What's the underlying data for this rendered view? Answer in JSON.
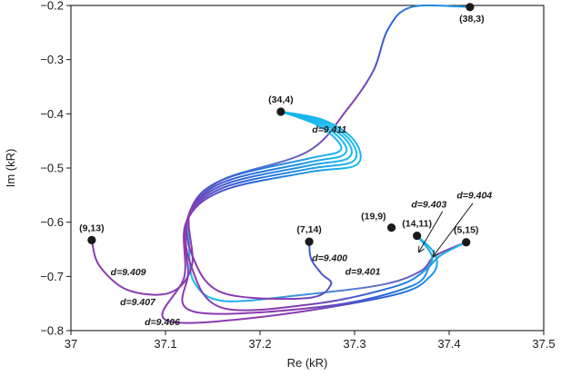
{
  "chart_data": {
    "type": "line",
    "xlabel": "Re (kR)",
    "ylabel": "Im (kR)",
    "xlim": [
      37.0,
      37.5
    ],
    "ylim": [
      -0.8,
      -0.2
    ],
    "xticks": [
      {
        "v": 37.0,
        "label": "37"
      },
      {
        "v": 37.1,
        "label": "37.1"
      },
      {
        "v": 37.2,
        "label": "37.2"
      },
      {
        "v": 37.3,
        "label": "37.3"
      },
      {
        "v": 37.4,
        "label": "37.4"
      },
      {
        "v": 37.5,
        "label": "37.5"
      }
    ],
    "yticks": [
      {
        "v": -0.8,
        "label": "−0.8"
      },
      {
        "v": -0.7,
        "label": "−0.7"
      },
      {
        "v": -0.6,
        "label": "−0.6"
      },
      {
        "v": -0.5,
        "label": "−0.5"
      },
      {
        "v": -0.4,
        "label": "−0.4"
      },
      {
        "v": -0.3,
        "label": "−0.3"
      },
      {
        "v": -0.2,
        "label": "−0.2"
      }
    ],
    "points": [
      {
        "label": "(38,3)",
        "x": 37.422,
        "y": -0.203
      },
      {
        "label": "(34,4)",
        "x": 37.222,
        "y": -0.396
      },
      {
        "label": "(9,13)",
        "x": 37.022,
        "y": -0.633
      },
      {
        "label": "(7,14)",
        "x": 37.252,
        "y": -0.636
      },
      {
        "label": "(19,9)",
        "x": 37.339,
        "y": -0.61
      },
      {
        "label": "(14,11)",
        "x": 37.366,
        "y": -0.625
      },
      {
        "label": "(5,15)",
        "x": 37.418,
        "y": -0.637
      }
    ],
    "series": [
      {
        "name": "d=9.411",
        "points": [
          [
            37.422,
            -0.203
          ],
          [
            37.36,
            -0.203
          ],
          [
            37.335,
            -0.245
          ],
          [
            37.32,
            -0.32
          ],
          [
            37.292,
            -0.392
          ],
          [
            37.25,
            -0.47
          ],
          [
            37.16,
            -0.522
          ],
          [
            37.126,
            -0.58
          ],
          [
            37.125,
            -0.64
          ],
          [
            37.13,
            -0.71
          ],
          [
            37.16,
            -0.745
          ],
          [
            37.24,
            -0.735
          ],
          [
            37.33,
            -0.715
          ],
          [
            37.37,
            -0.69
          ],
          [
            37.385,
            -0.662
          ],
          [
            37.418,
            -0.637
          ]
        ]
      },
      {
        "name": "d=9.411",
        "points": [
          [
            37.222,
            -0.396
          ],
          [
            37.26,
            -0.42
          ],
          [
            37.282,
            -0.45
          ],
          [
            37.283,
            -0.47
          ],
          [
            37.25,
            -0.483
          ],
          [
            37.16,
            -0.522
          ],
          [
            37.126,
            -0.58
          ],
          [
            37.128,
            -0.68
          ],
          [
            37.105,
            -0.73
          ],
          [
            37.06,
            -0.725
          ],
          [
            37.03,
            -0.68
          ],
          [
            37.022,
            -0.633
          ]
        ]
      },
      {
        "name": "d=9.411",
        "points": [
          [
            37.222,
            -0.396
          ],
          [
            37.262,
            -0.418
          ],
          [
            37.287,
            -0.45
          ],
          [
            37.288,
            -0.476
          ],
          [
            37.25,
            -0.49
          ],
          [
            37.16,
            -0.527
          ],
          [
            37.125,
            -0.585
          ],
          [
            37.128,
            -0.66
          ],
          [
            37.16,
            -0.73
          ],
          [
            37.25,
            -0.74
          ],
          [
            37.275,
            -0.715
          ],
          [
            37.265,
            -0.695
          ],
          [
            37.254,
            -0.668
          ],
          [
            37.252,
            -0.636
          ]
        ]
      },
      {
        "name": "d=9.411",
        "points": [
          [
            37.222,
            -0.396
          ],
          [
            37.264,
            -0.416
          ],
          [
            37.292,
            -0.45
          ],
          [
            37.293,
            -0.482
          ],
          [
            37.25,
            -0.496
          ],
          [
            37.16,
            -0.532
          ],
          [
            37.124,
            -0.59
          ],
          [
            37.127,
            -0.68
          ],
          [
            37.16,
            -0.758
          ],
          [
            37.26,
            -0.75
          ],
          [
            37.34,
            -0.72
          ],
          [
            37.37,
            -0.695
          ],
          [
            37.382,
            -0.664
          ],
          [
            37.366,
            -0.625
          ]
        ]
      },
      {
        "name": "d=9.411",
        "points": [
          [
            37.222,
            -0.396
          ],
          [
            37.266,
            -0.414
          ],
          [
            37.296,
            -0.45
          ],
          [
            37.298,
            -0.488
          ],
          [
            37.25,
            -0.502
          ],
          [
            37.16,
            -0.537
          ],
          [
            37.123,
            -0.595
          ],
          [
            37.124,
            -0.69
          ],
          [
            37.13,
            -0.765
          ],
          [
            37.27,
            -0.755
          ],
          [
            37.36,
            -0.718
          ],
          [
            37.38,
            -0.68
          ],
          [
            37.392,
            -0.66
          ],
          [
            37.418,
            -0.637
          ]
        ]
      },
      {
        "name": "d=9.411",
        "points": [
          [
            37.222,
            -0.396
          ],
          [
            37.268,
            -0.412
          ],
          [
            37.3,
            -0.45
          ],
          [
            37.302,
            -0.494
          ],
          [
            37.25,
            -0.508
          ],
          [
            37.16,
            -0.542
          ],
          [
            37.122,
            -0.6
          ],
          [
            37.12,
            -0.7
          ],
          [
            37.1,
            -0.78
          ],
          [
            37.2,
            -0.775
          ],
          [
            37.34,
            -0.735
          ],
          [
            37.38,
            -0.7
          ],
          [
            37.386,
            -0.662
          ],
          [
            37.366,
            -0.625
          ]
        ]
      }
    ],
    "annotations": [
      {
        "text": "d=9.411",
        "x": 37.255,
        "y": -0.435
      },
      {
        "text": "d=9.400",
        "x": 37.255,
        "y": -0.672
      },
      {
        "text": "d=9.401",
        "x": 37.29,
        "y": -0.697
      },
      {
        "text": "d=9.409",
        "x": 37.042,
        "y": -0.698
      },
      {
        "text": "d=9.407",
        "x": 37.052,
        "y": -0.753
      },
      {
        "text": "d=9.406",
        "x": 37.078,
        "y": -0.79
      },
      {
        "text": "d=9.403",
        "x": 37.36,
        "y": -0.573
      },
      {
        "text": "d=9.404",
        "x": 37.408,
        "y": -0.556
      }
    ],
    "arrows": [
      {
        "from": [
          37.393,
          -0.58
        ],
        "to": [
          37.368,
          -0.655
        ]
      },
      {
        "from": [
          37.425,
          -0.565
        ],
        "to": [
          37.383,
          -0.663
        ]
      }
    ],
    "grid": false,
    "legend": "none"
  },
  "colors": {
    "start": "#19b8ec",
    "mid": "#2b64d6",
    "end": "#8a3bb0",
    "marker": "#1a1a1a",
    "axis": "#1a1a1a"
  }
}
